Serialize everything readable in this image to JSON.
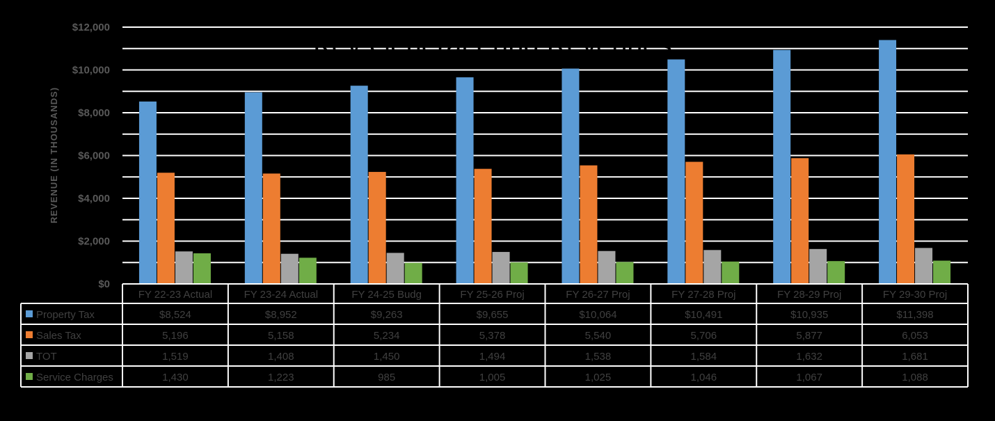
{
  "chart_data": {
    "type": "bar",
    "title": "Key General Fund Revenues",
    "xlabel": "",
    "ylabel": "REVENUE (IN THOUSANDS)",
    "ylim": [
      0,
      12000
    ],
    "yticks": [
      0,
      2000,
      4000,
      6000,
      8000,
      10000,
      12000
    ],
    "ytick_labels": [
      "$0",
      "$2,000",
      "$4,000",
      "$6,000",
      "$8,000",
      "$10,000",
      "$12,000"
    ],
    "grid": true,
    "legend": "data-table",
    "categories": [
      "FY 22-23 Actual",
      "FY 23-24 Actual",
      "FY 24-25 Budg",
      "FY 25-26 Proj",
      "FY 26-27 Proj",
      "FY 27-28 Proj",
      "FY 28-29 Proj",
      "FY 29-30 Proj"
    ],
    "series": [
      {
        "name": "Property Tax",
        "color": "#5B9BD5",
        "values": [
          8524,
          8952,
          9263,
          9655,
          10064,
          10491,
          10935,
          11398
        ],
        "labels": [
          "$8,524",
          "$8,952",
          "$9,263",
          "$9,655",
          "$10,064",
          "$10,491",
          "$10,935",
          "$11,398"
        ]
      },
      {
        "name": "Sales Tax",
        "color": "#ED7D31",
        "values": [
          5196,
          5158,
          5234,
          5378,
          5540,
          5706,
          5877,
          6053
        ],
        "labels": [
          "5,196",
          "5,158",
          "5,234",
          "5,378",
          "5,540",
          "5,706",
          "5,877",
          "6,053"
        ]
      },
      {
        "name": "TOT",
        "color": "#A5A5A5",
        "values": [
          1519,
          1408,
          1450,
          1494,
          1538,
          1584,
          1632,
          1681
        ],
        "labels": [
          "1,519",
          "1,408",
          "1,450",
          "1,494",
          "1,538",
          "1,584",
          "1,632",
          "1,681"
        ]
      },
      {
        "name": "Service Charges",
        "color": "#70AD47",
        "values": [
          1430,
          1223,
          985,
          1005,
          1025,
          1046,
          1067,
          1088
        ],
        "labels": [
          "1,430",
          "1,223",
          "985",
          "1,005",
          "1,025",
          "1,046",
          "1,067",
          "1,088"
        ]
      }
    ]
  }
}
